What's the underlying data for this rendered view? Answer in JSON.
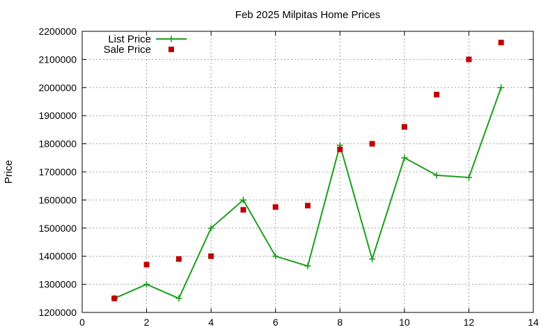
{
  "chart_data": {
    "type": "line",
    "title": "Feb 2025 Milpitas Home Prices",
    "xlabel": "",
    "ylabel": "Price",
    "xlim": [
      0,
      14
    ],
    "ylim": [
      1200000,
      2200000
    ],
    "xticks": [
      0,
      2,
      4,
      6,
      8,
      10,
      12,
      14
    ],
    "yticks": [
      1200000,
      1300000,
      1400000,
      1500000,
      1600000,
      1700000,
      1800000,
      1900000,
      2000000,
      2100000,
      2200000
    ],
    "grid": true,
    "legend_position": "top-left",
    "series": [
      {
        "name": "List Price",
        "style": "line-plus",
        "color": "#1a9e1a",
        "x": [
          1,
          2,
          3,
          4,
          5,
          6,
          7,
          8,
          9,
          10,
          11,
          12,
          13
        ],
        "y": [
          1250000,
          1300000,
          1250000,
          1500000,
          1600000,
          1400000,
          1365000,
          1795000,
          1390000,
          1750000,
          1688000,
          1680000,
          2000000
        ]
      },
      {
        "name": "Sale Price",
        "style": "square",
        "color": "#c00000",
        "x": [
          1,
          2,
          3,
          4,
          5,
          6,
          7,
          8,
          9,
          10,
          11,
          12,
          13
        ],
        "y": [
          1250000,
          1370000,
          1390000,
          1400000,
          1565000,
          1575000,
          1580000,
          1780000,
          1800000,
          1860000,
          1975000,
          2100000,
          2160000
        ]
      }
    ]
  }
}
